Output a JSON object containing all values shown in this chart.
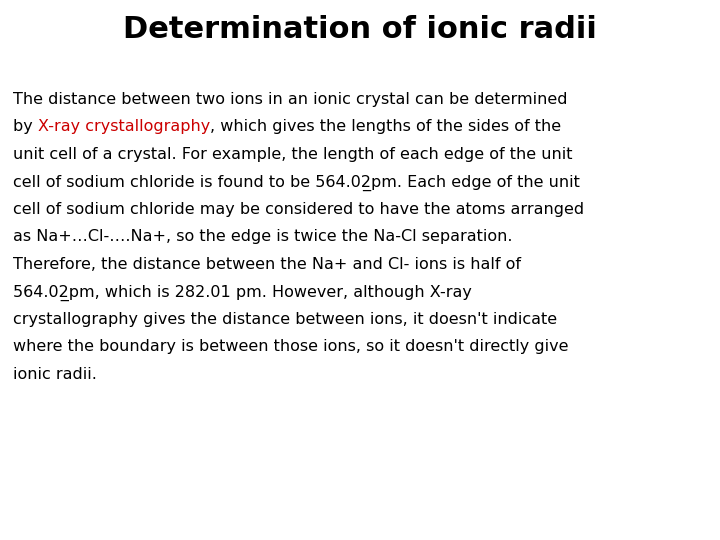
{
  "title": "Determination of ionic radii",
  "title_fontsize": 22,
  "body_fontsize": 11.5,
  "background_color": "#ffffff",
  "text_color": "#000000",
  "link_color": "#cc0000",
  "lines": [
    [
      [
        "The distance between two ions in an ionic crystal can be determined",
        "#000000"
      ]
    ],
    [
      [
        "by ",
        "#000000"
      ],
      [
        "X-ray crystallography",
        "#cc0000"
      ],
      [
        ", which gives the lengths of the sides of the",
        "#000000"
      ]
    ],
    [
      [
        "unit cell of a crystal. For example, the length of each edge of the unit",
        "#000000"
      ]
    ],
    [
      [
        "cell of sodium chloride is found to be 564.02̲pm. Each edge of the unit",
        "#000000"
      ]
    ],
    [
      [
        "cell of sodium chloride may be considered to have the atoms arranged",
        "#000000"
      ]
    ],
    [
      [
        "as Na+…Cl-….Na+, so the edge is twice the Na-Cl separation.",
        "#000000"
      ]
    ],
    [
      [
        "Therefore, the distance between the Na+ and Cl- ions is half of",
        "#000000"
      ]
    ],
    [
      [
        "564.02̲pm, which is 282.01 pm. However, although X-ray",
        "#000000"
      ]
    ],
    [
      [
        "crystallography gives the distance between ions, it doesn't indicate",
        "#000000"
      ]
    ],
    [
      [
        "where the boundary is between those ions, so it doesn't directly give",
        "#000000"
      ]
    ],
    [
      [
        "ionic radii.",
        "#000000"
      ]
    ]
  ]
}
